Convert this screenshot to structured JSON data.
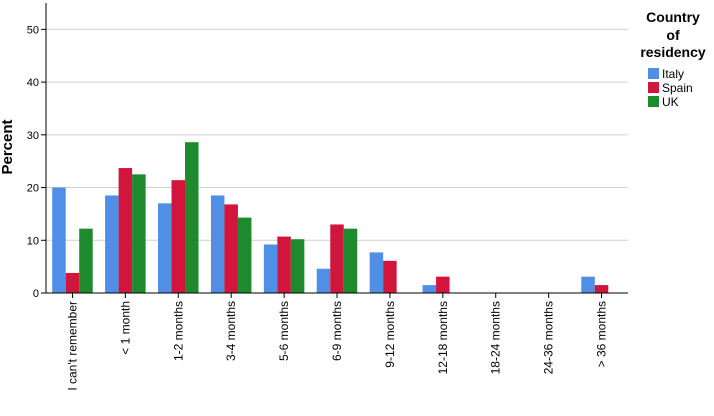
{
  "chart_data": {
    "type": "bar",
    "title": "",
    "xlabel": "",
    "ylabel": "Percent",
    "ylim": [
      0,
      55
    ],
    "yticks": [
      0,
      10,
      20,
      30,
      40,
      50
    ],
    "grid": true,
    "legend_position": "top-right",
    "legend_title_lines": [
      "Country",
      "of",
      "residency"
    ],
    "categories": [
      "I can't remember",
      "< 1 month",
      "1-2 months",
      "3-4 months",
      "5-6 months",
      "6-9 months",
      "9-12 months",
      "12-18 months",
      "18-24 months",
      "24-36 months",
      "> 36 months"
    ],
    "series": [
      {
        "name": "Italy",
        "color": "#4f8fe6",
        "values": [
          20.0,
          18.5,
          17.0,
          18.5,
          9.2,
          4.6,
          7.7,
          1.5,
          0,
          0,
          3.1
        ]
      },
      {
        "name": "Spain",
        "color": "#d2153d",
        "values": [
          3.8,
          23.7,
          21.4,
          16.8,
          10.7,
          13.0,
          6.1,
          3.1,
          0,
          0,
          1.5
        ]
      },
      {
        "name": "UK",
        "color": "#1e8a2e",
        "values": [
          12.2,
          22.5,
          28.6,
          14.3,
          10.2,
          12.2,
          0,
          0,
          0,
          0,
          0
        ]
      }
    ]
  }
}
